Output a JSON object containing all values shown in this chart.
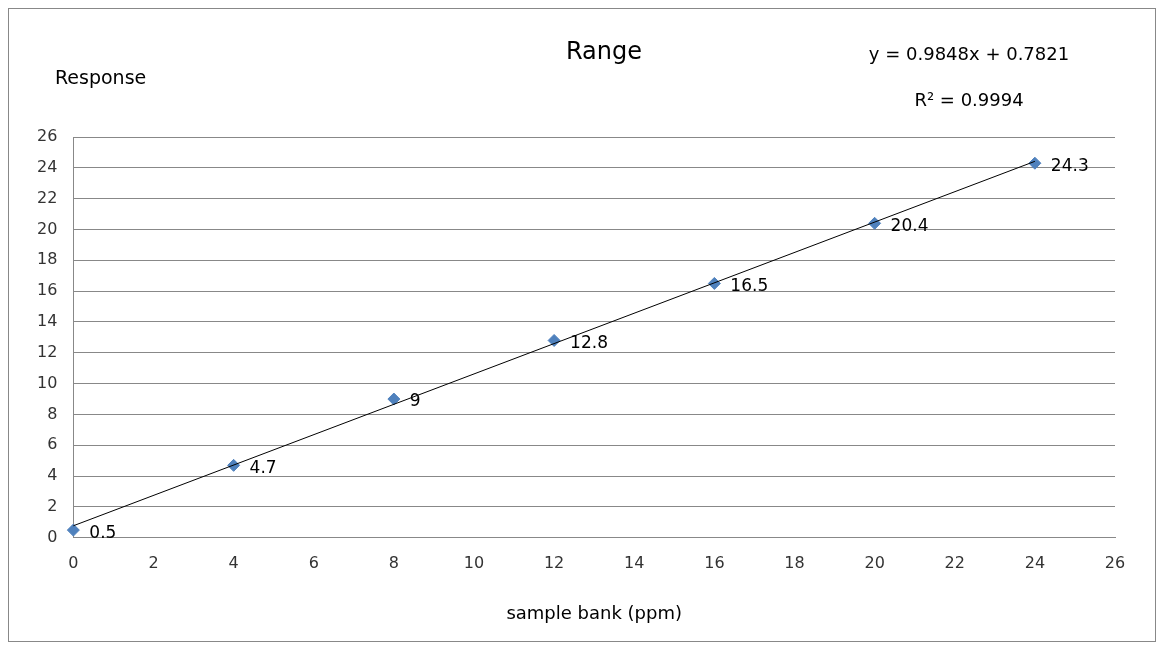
{
  "chart_data": {
    "type": "scatter",
    "title": "Range",
    "xlabel": "sample bank (ppm)",
    "ylabel": "Response",
    "annotations": [
      "y = 0.9848x + 0.7821",
      "R² = 0.9994"
    ],
    "xlim": [
      0,
      26
    ],
    "xticks": [
      0,
      2,
      4,
      6,
      8,
      10,
      12,
      14,
      16,
      18,
      20,
      22,
      24,
      26
    ],
    "ylim": [
      0,
      26
    ],
    "yticks": [
      0,
      2,
      4,
      6,
      8,
      10,
      12,
      14,
      16,
      18,
      20,
      22,
      24,
      26
    ],
    "grid": "y",
    "legend": false,
    "series": [
      {
        "type": "scatter",
        "color": "#4f81bd",
        "marker": "diamond",
        "x": [
          0,
          4,
          8,
          12,
          16,
          20,
          24
        ],
        "values": [
          0.5,
          4.7,
          9,
          12.8,
          16.5,
          20.4,
          24.3
        ],
        "value_labels": [
          "0.5",
          "4.7",
          "9",
          "12.8",
          "16.5",
          "20.4",
          "24.3"
        ]
      },
      {
        "type": "line",
        "color": "#000000",
        "x": [
          0,
          24
        ],
        "values": [
          0.78,
          24.42
        ]
      }
    ]
  }
}
